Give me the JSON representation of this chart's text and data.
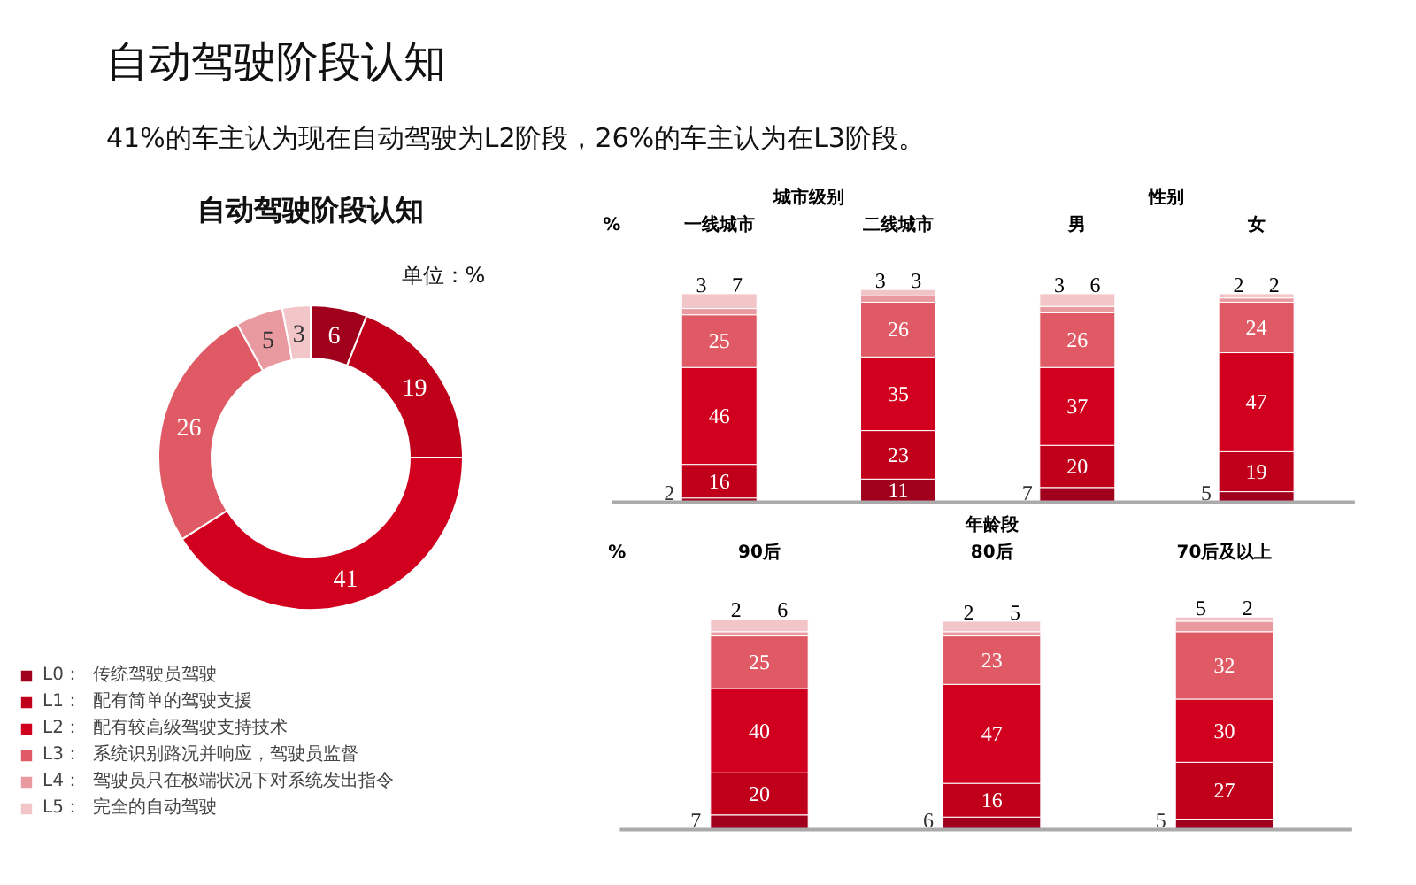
{
  "chart_data": [
    {
      "type": "donut",
      "title": "自动驾驶阶段认知",
      "subtitle": "41%的车主认为现在自动驾驶为L2阶段，26%的车主认为在L3阶段。",
      "annotations": [
        "自动驾驶阶段认知",
        "单位：%"
      ],
      "categories": [
        "L0：  传统驾驶员驾驶",
        "L1：  配有简单的驾驶支援",
        "L2：  配有较高级驾驶支持技术",
        "L3：  系统识别路况并响应，驾驶员监督",
        "L4：  驾驶员只在极端状况下对系统发出指令",
        "L5：  完全的自动驾驶"
      ],
      "values": [
        6,
        19,
        41,
        26,
        5,
        3
      ],
      "colors": [
        "#a0001c",
        "#c0001a",
        "#d2001f",
        "#df5a64",
        "#e89aa0",
        "#f2c6c9"
      ],
      "data_labels": true,
      "legend": "bottom left"
    },
    {
      "type": "bar",
      "stacked": true,
      "ylabel": "%",
      "annotations": [
        "城市级别",
        "性别"
      ],
      "categories": [
        "一线城市",
        "二线城市",
        "男",
        "女"
      ],
      "data_labels": true,
      "series": [
        {
          "color": "#a0001c",
          "values": [
            2,
            11,
            7,
            5
          ]
        },
        {
          "color": "#c0001a",
          "values": [
            16,
            23,
            20,
            19
          ]
        },
        {
          "color": "#d2001f",
          "values": [
            46,
            35,
            37,
            47
          ]
        },
        {
          "color": "#df5a64",
          "values": [
            25,
            26,
            26,
            24
          ]
        },
        {
          "color": "#e89aa0",
          "values": [
            3,
            3,
            3,
            2
          ]
        },
        {
          "color": "#f2c6c9",
          "values": [
            7,
            3,
            6,
            2
          ]
        }
      ]
    },
    {
      "type": "bar",
      "stacked": true,
      "ylabel": "%",
      "annotations": [
        "年龄段"
      ],
      "categories": [
        "90后",
        "80后",
        "70后及以上"
      ],
      "data_labels": true,
      "series": [
        {
          "color": "#a0001c",
          "values": [
            7,
            6,
            5
          ]
        },
        {
          "color": "#c0001a",
          "values": [
            20,
            16,
            27
          ]
        },
        {
          "color": "#d2001f",
          "values": [
            40,
            47,
            30
          ]
        },
        {
          "color": "#df5a64",
          "values": [
            25,
            23,
            32
          ]
        },
        {
          "color": "#e89aa0",
          "values": [
            2,
            2,
            5
          ]
        },
        {
          "color": "#f2c6c9",
          "values": [
            6,
            5,
            2
          ]
        }
      ]
    }
  ]
}
